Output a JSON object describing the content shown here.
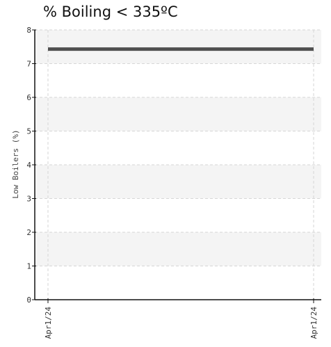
{
  "chart_data": {
    "type": "line",
    "title": "% Boiling < 335ºC",
    "xlabel": "",
    "ylabel": "Low Boilers (%)",
    "ylim": [
      0,
      8
    ],
    "yticks": [
      0,
      1,
      2,
      3,
      4,
      5,
      6,
      7,
      8
    ],
    "x": [
      "Apr1/24",
      "Apr1/24"
    ],
    "series": [
      {
        "values": [
          7.43,
          7.43
        ]
      }
    ],
    "grid": true,
    "alternating_bands": true,
    "colors": {
      "line": "#505050",
      "band": "#f4f4f4",
      "grid": "#d6d6d6",
      "axis": "#111111"
    }
  }
}
